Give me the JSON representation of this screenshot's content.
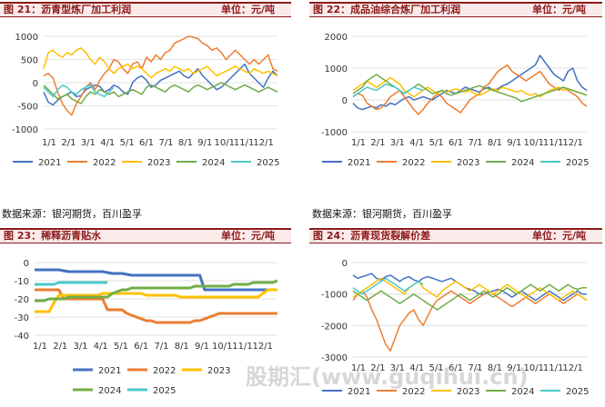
{
  "source_text": "数据来源：银河期货，百川盈孚",
  "watermark": "股期汇(www.guqihui.cn)",
  "colors": {
    "2021": "#4472c4",
    "2022": "#ed7d31",
    "2023": "#ffc000",
    "2024": "#70ad47",
    "2025": "#4bc8c8"
  },
  "chart_data": [
    {
      "type": "line",
      "title": "图 21：沥青型炼厂加工利润",
      "unit": "单位：元/吨",
      "x_ticks": [
        "1/1",
        "2/1",
        "3/1",
        "4/1",
        "5/1",
        "6/1",
        "7/1",
        "8/1",
        "9/1",
        "10/1",
        "11/1",
        "12/1"
      ],
      "yticks": [
        1000,
        500,
        0,
        -500,
        -1000
      ],
      "ylim": [
        -1000,
        1000
      ],
      "series": [
        {
          "name": "2021",
          "values": [
            -200,
            -420,
            -480,
            -380,
            -300,
            -250,
            -200,
            -300,
            -280,
            -150,
            -100,
            -50,
            -80,
            -200,
            -150,
            -50,
            -100,
            -200,
            -250,
            0,
            100,
            150,
            50,
            -100,
            -50,
            50,
            100,
            150,
            200,
            250,
            150,
            100,
            200,
            300,
            150,
            50,
            -50,
            -150,
            -100,
            0,
            100,
            200,
            300,
            400,
            200,
            100,
            0,
            -100,
            100,
            250,
            150
          ]
        },
        {
          "name": "2022",
          "values": [
            150,
            200,
            100,
            -200,
            -450,
            -600,
            -700,
            -450,
            -300,
            -100,
            0,
            -150,
            50,
            200,
            300,
            500,
            450,
            300,
            200,
            400,
            450,
            300,
            550,
            450,
            600,
            500,
            650,
            700,
            850,
            900,
            950,
            1000,
            980,
            950,
            850,
            800,
            700,
            750,
            650,
            500,
            600,
            700,
            600,
            500,
            400,
            500,
            400,
            500,
            600,
            300,
            250
          ]
        },
        {
          "name": "2023",
          "values": [
            300,
            650,
            700,
            600,
            550,
            650,
            600,
            700,
            750,
            650,
            500,
            400,
            550,
            450,
            300,
            200,
            300,
            350,
            400,
            300,
            350,
            300,
            200,
            100,
            200,
            250,
            300,
            250,
            350,
            300,
            250,
            300,
            200,
            250,
            300,
            350,
            250,
            150,
            200,
            250,
            300,
            350,
            300,
            250,
            200,
            300,
            250,
            200,
            250,
            200,
            150
          ]
        },
        {
          "name": "2024",
          "values": [
            -50,
            -150,
            -250,
            -350,
            -300,
            -250,
            -350,
            -400,
            -450,
            -300,
            -200,
            -250,
            -150,
            -200,
            -250,
            -200,
            -300,
            -250,
            -200,
            -150,
            -200,
            -250,
            -100,
            -50,
            -100,
            -150,
            -200,
            -100,
            -50,
            -100,
            -150,
            -200,
            -100,
            -50,
            -100,
            -150,
            -100,
            -50,
            0,
            -50,
            -100,
            -150,
            -100,
            -50,
            -100,
            -150,
            -200,
            -150,
            -100,
            -150,
            -200
          ]
        },
        {
          "name": "2025",
          "values": [
            -100,
            -200,
            -300,
            -150,
            -50,
            -100,
            -200,
            -250,
            -150,
            -100,
            -50,
            -200,
            -250,
            -300,
            -200,
            -100
          ]
        }
      ]
    },
    {
      "type": "line",
      "title": "图 22：成品油综合炼厂加工利润",
      "unit": "单位：元/吨",
      "x_ticks": [
        "1/1",
        "2/1",
        "3/1",
        "4/1",
        "5/1",
        "6/1",
        "7/1",
        "8/1",
        "9/1",
        "10/1",
        "11/1",
        "12/1"
      ],
      "yticks": [
        2000,
        1000,
        0,
        -1000
      ],
      "ylim": [
        -1000,
        2000
      ],
      "series": [
        {
          "name": "2021",
          "values": [
            -100,
            -250,
            -300,
            -250,
            -200,
            -250,
            -150,
            -200,
            -100,
            -150,
            -50,
            50,
            100,
            0,
            50,
            100,
            50,
            0,
            100,
            200,
            300,
            250,
            200,
            300,
            400,
            350,
            300,
            250,
            350,
            400,
            300,
            350,
            450,
            500,
            600,
            700,
            800,
            900,
            1000,
            1100,
            1400,
            1200,
            1000,
            800,
            700,
            600,
            900,
            1000,
            600,
            400,
            300
          ]
        },
        {
          "name": "2022",
          "values": [
            100,
            200,
            150,
            -100,
            -200,
            -300,
            -250,
            -100,
            100,
            200,
            300,
            100,
            -100,
            -300,
            -450,
            -300,
            -100,
            50,
            200,
            100,
            -100,
            -200,
            -300,
            -400,
            -200,
            0,
            100,
            200,
            400,
            500,
            700,
            900,
            1000,
            1100,
            900,
            800,
            700,
            600,
            700,
            800,
            900,
            700,
            500,
            400,
            300,
            400,
            300,
            200,
            100,
            -100,
            -200
          ]
        },
        {
          "name": "2023",
          "values": [
            300,
            400,
            500,
            600,
            500,
            400,
            500,
            600,
            700,
            600,
            500,
            300,
            200,
            100,
            200,
            300,
            400,
            300,
            200,
            300,
            250,
            300,
            350,
            300,
            250,
            300,
            200,
            150,
            200,
            300,
            350,
            300,
            400,
            350,
            300,
            250,
            300,
            200,
            150,
            200,
            100,
            200,
            300,
            350,
            400,
            300,
            350,
            300,
            250,
            200,
            150
          ]
        },
        {
          "name": "2024",
          "values": [
            200,
            300,
            400,
            600,
            700,
            800,
            700,
            600,
            500,
            400,
            300,
            200,
            300,
            400,
            500,
            400,
            300,
            200,
            250,
            300,
            200,
            150,
            200,
            250,
            300,
            350,
            400,
            450,
            400,
            350,
            300,
            250,
            200,
            150,
            100,
            50,
            -50,
            0,
            50,
            100,
            150,
            200,
            250,
            300,
            350,
            400,
            350,
            300,
            250,
            200,
            150
          ]
        },
        {
          "name": "2025",
          "values": [
            100,
            200,
            300,
            400,
            350,
            300,
            400,
            500,
            450,
            400,
            300,
            200,
            300,
            400,
            350,
            300
          ]
        }
      ]
    },
    {
      "type": "line",
      "title": "图 23：稀释沥青贴水",
      "unit": "单位：元/吨",
      "x_ticks": [
        "1/1",
        "2/1",
        "3/1",
        "4/1",
        "5/1",
        "6/1",
        "7/1",
        "8/1",
        "9/1",
        "10/1",
        "11/1",
        "12/1"
      ],
      "yticks": [
        0,
        -10,
        -20,
        -30,
        -40
      ],
      "ylim": [
        -40,
        0
      ],
      "series": [
        {
          "name": "2021",
          "values": [
            -4,
            -4,
            -4,
            -4,
            -4,
            -4,
            -4.5,
            -5,
            -5,
            -5,
            -5,
            -5,
            -5,
            -5,
            -5,
            -5.5,
            -6,
            -6,
            -6,
            -6.5,
            -7,
            -7,
            -7,
            -7,
            -7,
            -7,
            -7,
            -7,
            -7,
            -7,
            -7,
            -7,
            -7,
            -7,
            -7,
            -15,
            -15,
            -15,
            -15,
            -15,
            -15,
            -15,
            -15,
            -15,
            -15,
            -15,
            -15,
            -15,
            -15,
            -15,
            -15
          ]
        },
        {
          "name": "2022",
          "values": [
            -15,
            -15,
            -15,
            -15,
            -15,
            -15,
            -20,
            -20,
            -20,
            -20,
            -20,
            -20,
            -20,
            -20,
            -20,
            -26,
            -26,
            -26,
            -26,
            -28,
            -29,
            -30,
            -31,
            -32,
            -32,
            -33,
            -33,
            -33,
            -33,
            -33,
            -33,
            -33,
            -33,
            -32,
            -32,
            -31,
            -30,
            -29,
            -28,
            -28,
            -28,
            -28,
            -28,
            -28,
            -28,
            -28,
            -28,
            -28,
            -28,
            -28,
            -28
          ]
        },
        {
          "name": "2023",
          "values": [
            -27,
            -27,
            -27,
            -27,
            -22,
            -18,
            -18,
            -18,
            -18,
            -18,
            -18,
            -18,
            -18,
            -18,
            -17,
            -17,
            -17,
            -17,
            -17,
            -17,
            -17,
            -17,
            -17,
            -18,
            -18,
            -18,
            -18,
            -18,
            -18,
            -18,
            -19,
            -19,
            -19,
            -19,
            -19,
            -19,
            -19,
            -19,
            -19,
            -19,
            -19,
            -19,
            -19,
            -19,
            -19,
            -19,
            -19,
            -17,
            -15,
            -15,
            -15
          ]
        },
        {
          "name": "2024",
          "values": [
            -21,
            -21,
            -21,
            -20,
            -20,
            -20,
            -20,
            -19,
            -19,
            -19,
            -19,
            -19,
            -19,
            -19,
            -19,
            -19,
            -17,
            -16,
            -15,
            -15,
            -14,
            -14,
            -14,
            -14,
            -14,
            -14,
            -14,
            -14,
            -14,
            -14,
            -14,
            -14,
            -14,
            -13,
            -13,
            -13,
            -13,
            -13,
            -13,
            -13,
            -13,
            -12,
            -12,
            -12,
            -12,
            -11,
            -11,
            -11,
            -11,
            -11,
            -10
          ]
        },
        {
          "name": "2025",
          "values": [
            -12,
            -12,
            -12,
            -12,
            -12,
            -11,
            -11,
            -11,
            -11,
            -11,
            -11,
            -11,
            -11,
            -11,
            -11,
            -11
          ]
        }
      ]
    },
    {
      "type": "line",
      "title": "图 24：沥青现货裂解价差",
      "unit": "单位：元/吨",
      "x_ticks": [
        "1/1",
        "2/1",
        "3/1",
        "4/1",
        "5/1",
        "6/1",
        "7/1",
        "8/1",
        "9/1",
        "10/1",
        "11/1",
        "12/1"
      ],
      "yticks": [
        0,
        -1000,
        -2000,
        -3000
      ],
      "ylim": [
        -3000,
        0
      ],
      "series": [
        {
          "name": "2021",
          "values": [
            -400,
            -500,
            -450,
            -400,
            -350,
            -500,
            -550,
            -450,
            -400,
            -500,
            -600,
            -500,
            -450,
            -550,
            -600,
            -500,
            -450,
            -500,
            -550,
            -600,
            -550,
            -500,
            -600,
            -700,
            -800,
            -850,
            -900,
            -1000,
            -1000,
            -950,
            -900,
            -850,
            -900,
            -1000,
            -1100,
            -1000,
            -900,
            -1000,
            -1100,
            -1200,
            -1100,
            -1000,
            -900,
            -1000,
            -1100,
            -1200,
            -1100,
            -1000,
            -900,
            -1000,
            -1000
          ]
        },
        {
          "name": "2022",
          "values": [
            -1200,
            -1000,
            -900,
            -1100,
            -1500,
            -1800,
            -2200,
            -2600,
            -2800,
            -2400,
            -2000,
            -1800,
            -1600,
            -1500,
            -1800,
            -2000,
            -1700,
            -1400,
            -1200,
            -1100,
            -1000,
            -900,
            -1000,
            -1100,
            -1200,
            -1300,
            -1200,
            -1100,
            -1000,
            -900,
            -1000,
            -1100,
            -1200,
            -1300,
            -1400,
            -1300,
            -1200,
            -1100,
            -1200,
            -1300,
            -1200,
            -1100,
            -1000,
            -1100,
            -1200,
            -1300,
            -1200,
            -1100,
            -1000,
            -1100,
            -1200
          ]
        },
        {
          "name": "2023",
          "values": [
            -1100,
            -1000,
            -900,
            -800,
            -700,
            -600,
            -500,
            -600,
            -700,
            -800,
            -900,
            -1000,
            -800,
            -700,
            -600,
            -800,
            -900,
            -1000,
            -1100,
            -900,
            -800,
            -700,
            -600,
            -700,
            -800,
            -900,
            -800,
            -700,
            -800,
            -900,
            -1000,
            -900,
            -800,
            -700,
            -800,
            -900,
            -1000,
            -1100,
            -1000,
            -900,
            -800,
            -900,
            -1000,
            -1100,
            -1200,
            -1100,
            -1000,
            -900,
            -1000,
            -1100,
            -1200
          ]
        },
        {
          "name": "2024",
          "values": [
            -900,
            -1000,
            -1100,
            -1200,
            -1100,
            -1000,
            -900,
            -1000,
            -1100,
            -1200,
            -1300,
            -1200,
            -1100,
            -1000,
            -1100,
            -1200,
            -1300,
            -1400,
            -1500,
            -1400,
            -1300,
            -1200,
            -1100,
            -1000,
            -1100,
            -1200,
            -1100,
            -1000,
            -900,
            -1000,
            -1100,
            -1000,
            -900,
            -800,
            -900,
            -1000,
            -900,
            -800,
            -700,
            -800,
            -900,
            -800,
            -700,
            -800,
            -900,
            -800,
            -700,
            -800,
            -850,
            -800,
            -800
          ]
        },
        {
          "name": "2025",
          "values": [
            -800,
            -900,
            -1000,
            -900,
            -800,
            -700,
            -600,
            -500,
            -600,
            -700,
            -800,
            -900,
            -800,
            -700,
            -600,
            -700
          ]
        }
      ]
    }
  ]
}
